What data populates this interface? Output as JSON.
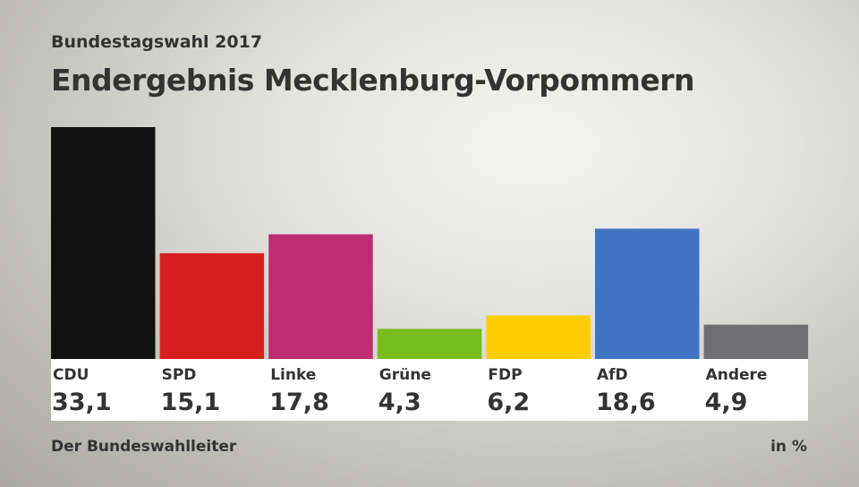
{
  "chart_data": {
    "type": "bar",
    "subtitle": "Bundestagswahl 2017",
    "title": "Endergebnis Mecklenburg-Vorpommern",
    "categories": [
      "CDU",
      "SPD",
      "Linke",
      "Grüne",
      "FDP",
      "AfD",
      "Andere"
    ],
    "values": [
      33.1,
      15.1,
      17.8,
      4.3,
      6.2,
      18.6,
      4.9
    ],
    "value_labels": [
      "33,1",
      "15,1",
      "17,8",
      "4,3",
      "6,2",
      "18,6",
      "4,9"
    ],
    "colors": [
      "#121212",
      "#d81f1f",
      "#bd2d72",
      "#77bd1b",
      "#ffcc00",
      "#3f74c3",
      "#6f6f72"
    ],
    "unit": "in %",
    "source": "Der Bundeswahlleiter",
    "ylim": [
      0,
      33.1
    ],
    "grid": false
  }
}
